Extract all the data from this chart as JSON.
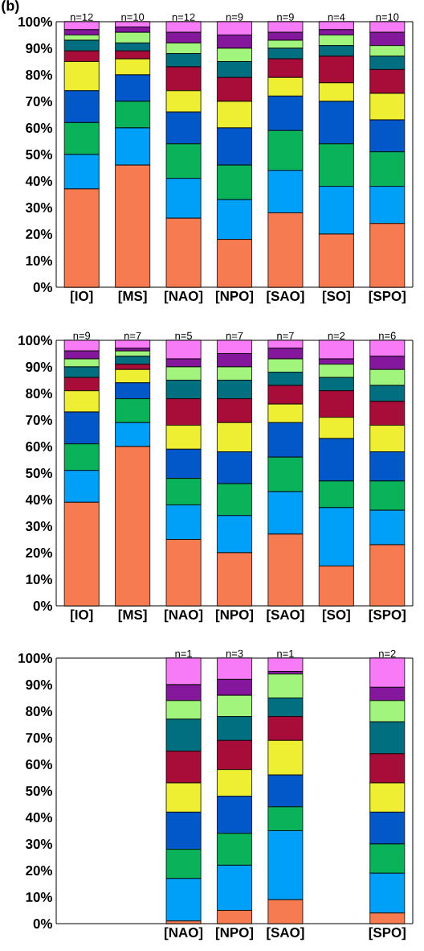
{
  "chart_data": [
    {
      "type": "bar",
      "stacked": true,
      "title": "(b)",
      "categories": [
        "[IO]",
        "[MS]",
        "[NAO]",
        "[NPO]",
        "[SAO]",
        "[SO]",
        "[SPO]"
      ],
      "ylim": [
        0,
        100
      ],
      "yticks": [
        {
          "value": 0,
          "label": "0%"
        },
        {
          "value": 10,
          "label": "10%"
        },
        {
          "value": 20,
          "label": "20%"
        },
        {
          "value": 30,
          "label": "30%"
        },
        {
          "value": 40,
          "label": "40%"
        },
        {
          "value": 50,
          "label": "50%"
        },
        {
          "value": 60,
          "label": "60%"
        },
        {
          "value": 70,
          "label": "70%"
        },
        {
          "value": 80,
          "label": "80%"
        },
        {
          "value": 90,
          "label": "90%"
        },
        {
          "value": 100,
          "label": "100%"
        }
      ],
      "series": [
        {
          "color": "#f77b50",
          "values": [
            37,
            46,
            26,
            18,
            28,
            20,
            24
          ]
        },
        {
          "color": "#00a0f8",
          "values": [
            13,
            14,
            15,
            15,
            16,
            18,
            14
          ]
        },
        {
          "color": "#0ab35a",
          "values": [
            12,
            10,
            13,
            13,
            15,
            16,
            13
          ]
        },
        {
          "color": "#0258c8",
          "values": [
            12,
            10,
            12,
            14,
            13,
            16,
            12
          ]
        },
        {
          "color": "#eeee33",
          "values": [
            11,
            6,
            8,
            10,
            7,
            7,
            10
          ]
        },
        {
          "color": "#a80c38",
          "values": [
            4,
            3,
            9,
            9,
            7,
            10,
            9
          ]
        },
        {
          "color": "#016f7f",
          "values": [
            4,
            3,
            5,
            6,
            4,
            4,
            5
          ]
        },
        {
          "color": "#a1f57d",
          "values": [
            2,
            4,
            4,
            5,
            3,
            4,
            4
          ]
        },
        {
          "color": "#85179d",
          "values": [
            2,
            2,
            4,
            5,
            3,
            2,
            5
          ]
        },
        {
          "color": "#f77bf7",
          "values": [
            3,
            2,
            4,
            5,
            4,
            3,
            4
          ]
        }
      ],
      "annotations": [
        "n=12",
        "n=10",
        "n=12",
        "n=9",
        "n=9",
        "n=4",
        "n=10"
      ]
    },
    {
      "type": "bar",
      "stacked": true,
      "categories": [
        "[IO]",
        "[MS]",
        "[NAO]",
        "[NPO]",
        "[SAO]",
        "[SO]",
        "[SPO]"
      ],
      "ylim": [
        0,
        100
      ],
      "yticks": [
        {
          "value": 0,
          "label": "0%"
        },
        {
          "value": 10,
          "label": "10%"
        },
        {
          "value": 20,
          "label": "20%"
        },
        {
          "value": 30,
          "label": "30%"
        },
        {
          "value": 40,
          "label": "40%"
        },
        {
          "value": 50,
          "label": "50%"
        },
        {
          "value": 60,
          "label": "60%"
        },
        {
          "value": 70,
          "label": "70%"
        },
        {
          "value": 80,
          "label": "80%"
        },
        {
          "value": 90,
          "label": "90%"
        },
        {
          "value": 100,
          "label": "100%"
        }
      ],
      "series": [
        {
          "color": "#f77b50",
          "values": [
            39,
            60,
            25,
            20,
            27,
            15,
            23
          ]
        },
        {
          "color": "#00a0f8",
          "values": [
            12,
            9,
            13,
            14,
            16,
            22,
            13
          ]
        },
        {
          "color": "#0ab35a",
          "values": [
            10,
            9,
            10,
            12,
            13,
            10,
            11
          ]
        },
        {
          "color": "#0258c8",
          "values": [
            12,
            6,
            11,
            12,
            13,
            16,
            11
          ]
        },
        {
          "color": "#eeee33",
          "values": [
            8,
            5,
            9,
            11,
            7,
            8,
            10
          ]
        },
        {
          "color": "#a80c38",
          "values": [
            5,
            2,
            10,
            9,
            7,
            10,
            9
          ]
        },
        {
          "color": "#016f7f",
          "values": [
            4,
            3,
            7,
            7,
            5,
            5,
            6
          ]
        },
        {
          "color": "#a1f57d",
          "values": [
            3,
            2,
            5,
            5,
            5,
            5,
            6
          ]
        },
        {
          "color": "#85179d",
          "values": [
            3,
            1,
            3,
            5,
            4,
            2,
            5
          ]
        },
        {
          "color": "#f77bf7",
          "values": [
            4,
            3,
            7,
            5,
            3,
            7,
            6
          ]
        }
      ],
      "annotations": [
        "n=9",
        "n=7",
        "n=5",
        "n=7",
        "n=7",
        "n=2",
        "n=6"
      ]
    },
    {
      "type": "bar",
      "stacked": true,
      "categories": [
        null,
        null,
        "[NAO]",
        "[NPO]",
        "[SAO]",
        null,
        "[SPO]"
      ],
      "ylim": [
        0,
        100
      ],
      "yticks": [
        {
          "value": 0,
          "label": "0%"
        },
        {
          "value": 10,
          "label": "10%"
        },
        {
          "value": 20,
          "label": "20%"
        },
        {
          "value": 30,
          "label": "30%"
        },
        {
          "value": 40,
          "label": "40%"
        },
        {
          "value": 50,
          "label": "50%"
        },
        {
          "value": 60,
          "label": "60%"
        },
        {
          "value": 70,
          "label": "70%"
        },
        {
          "value": 80,
          "label": "80%"
        },
        {
          "value": 90,
          "label": "90%"
        },
        {
          "value": 100,
          "label": "100%"
        }
      ],
      "series": [
        {
          "color": "#f77b50",
          "values": [
            null,
            null,
            1,
            5,
            9,
            null,
            4
          ]
        },
        {
          "color": "#00a0f8",
          "values": [
            null,
            null,
            16,
            17,
            26,
            null,
            15
          ]
        },
        {
          "color": "#0ab35a",
          "values": [
            null,
            null,
            11,
            12,
            9,
            null,
            11
          ]
        },
        {
          "color": "#0258c8",
          "values": [
            null,
            null,
            14,
            14,
            12,
            null,
            12
          ]
        },
        {
          "color": "#eeee33",
          "values": [
            null,
            null,
            11,
            10,
            13,
            null,
            11
          ]
        },
        {
          "color": "#a80c38",
          "values": [
            null,
            null,
            12,
            11,
            9,
            null,
            11
          ]
        },
        {
          "color": "#016f7f",
          "values": [
            null,
            null,
            12,
            9,
            7,
            null,
            12
          ]
        },
        {
          "color": "#a1f57d",
          "values": [
            null,
            null,
            7,
            8,
            9,
            null,
            8
          ]
        },
        {
          "color": "#85179d",
          "values": [
            null,
            null,
            6,
            6,
            1,
            null,
            5
          ]
        },
        {
          "color": "#f77bf7",
          "values": [
            null,
            null,
            10,
            8,
            5,
            null,
            11
          ]
        }
      ],
      "annotations": [
        "n=1",
        "n=3",
        "n=1",
        "n=2"
      ]
    }
  ]
}
